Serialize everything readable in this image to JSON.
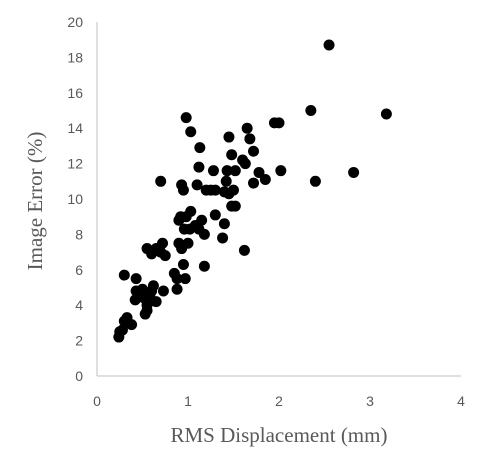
{
  "chart_data": {
    "type": "scatter",
    "title": "",
    "xlabel": "RMS Displacement (mm)",
    "ylabel": "Image Error (%)",
    "xlim": [
      0,
      4
    ],
    "ylim": [
      0,
      20
    ],
    "x_ticks": [
      0,
      1,
      2,
      3,
      4
    ],
    "y_ticks": [
      0,
      2,
      4,
      6,
      8,
      10,
      12,
      14,
      16,
      18,
      20
    ],
    "grid": false,
    "legend": "none",
    "series": [
      {
        "color": "#000000",
        "points": [
          [
            0.24,
            2.2
          ],
          [
            0.25,
            2.5
          ],
          [
            0.28,
            2.6
          ],
          [
            0.3,
            3.1
          ],
          [
            0.33,
            3.3
          ],
          [
            0.3,
            5.7
          ],
          [
            0.38,
            2.9
          ],
          [
            0.42,
            4.3
          ],
          [
            0.43,
            4.8
          ],
          [
            0.47,
            4.6
          ],
          [
            0.43,
            5.5
          ],
          [
            0.5,
            4.9
          ],
          [
            0.52,
            4.4
          ],
          [
            0.53,
            3.5
          ],
          [
            0.55,
            4.0
          ],
          [
            0.55,
            3.7
          ],
          [
            0.58,
            4.5
          ],
          [
            0.6,
            4.8
          ],
          [
            0.62,
            5.1
          ],
          [
            0.65,
            4.2
          ],
          [
            0.55,
            7.2
          ],
          [
            0.6,
            6.9
          ],
          [
            0.65,
            7.2
          ],
          [
            0.7,
            7.0
          ],
          [
            0.72,
            7.5
          ],
          [
            0.75,
            6.8
          ],
          [
            0.73,
            4.8
          ],
          [
            0.7,
            11.0
          ],
          [
            0.85,
            5.8
          ],
          [
            0.88,
            5.5
          ],
          [
            0.88,
            4.9
          ],
          [
            0.9,
            8.8
          ],
          [
            0.92,
            9.0
          ],
          [
            0.9,
            7.5
          ],
          [
            0.93,
            7.2
          ],
          [
            0.95,
            6.3
          ],
          [
            0.97,
            5.5
          ],
          [
            0.96,
            8.3
          ],
          [
            0.98,
            9.0
          ],
          [
            1.0,
            7.5
          ],
          [
            1.02,
            8.3
          ],
          [
            1.03,
            9.3
          ],
          [
            0.93,
            10.8
          ],
          [
            0.95,
            10.5
          ],
          [
            0.98,
            14.6
          ],
          [
            1.03,
            13.8
          ],
          [
            1.08,
            8.5
          ],
          [
            1.12,
            8.3
          ],
          [
            1.15,
            8.8
          ],
          [
            1.18,
            8.0
          ],
          [
            1.18,
            6.2
          ],
          [
            1.1,
            10.8
          ],
          [
            1.12,
            11.8
          ],
          [
            1.13,
            12.9
          ],
          [
            1.2,
            10.5
          ],
          [
            1.25,
            10.5
          ],
          [
            1.28,
            11.6
          ],
          [
            1.3,
            9.1
          ],
          [
            1.3,
            10.5
          ],
          [
            1.38,
            7.8
          ],
          [
            1.4,
            8.6
          ],
          [
            1.4,
            10.4
          ],
          [
            1.42,
            11.0
          ],
          [
            1.43,
            11.6
          ],
          [
            1.45,
            13.5
          ],
          [
            1.48,
            12.5
          ],
          [
            1.45,
            10.3
          ],
          [
            1.5,
            10.5
          ],
          [
            1.48,
            9.6
          ],
          [
            1.52,
            9.6
          ],
          [
            1.52,
            11.6
          ],
          [
            1.62,
            7.1
          ],
          [
            1.6,
            12.2
          ],
          [
            1.63,
            12.0
          ],
          [
            1.65,
            14.0
          ],
          [
            1.68,
            13.4
          ],
          [
            1.72,
            12.7
          ],
          [
            1.72,
            10.9
          ],
          [
            1.78,
            11.5
          ],
          [
            1.85,
            11.1
          ],
          [
            1.95,
            14.3
          ],
          [
            2.0,
            14.3
          ],
          [
            2.02,
            11.6
          ],
          [
            2.35,
            15.0
          ],
          [
            2.4,
            11.0
          ],
          [
            2.55,
            18.7
          ],
          [
            2.82,
            11.5
          ],
          [
            3.18,
            14.8
          ]
        ]
      }
    ]
  }
}
